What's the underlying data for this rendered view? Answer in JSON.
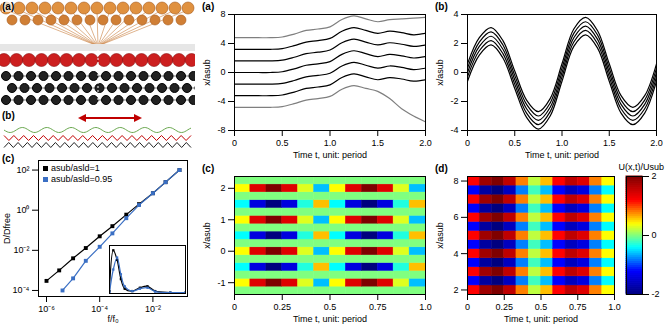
{
  "diagrams": [
    {
      "label": "(a)"
    },
    {
      "label": "(b)"
    }
  ],
  "chart_data": [
    {
      "type": "line",
      "title": "(c)",
      "log": true,
      "marker": "square",
      "legend": "top-left",
      "x_label": "f/f₀",
      "y_label": "D/Dfree",
      "xlim": [
        5e-07,
        0.2
      ],
      "ylim": [
        5e-05,
        300
      ],
      "xticks": [
        {
          "value": 1e-06,
          "label": "10⁻⁶"
        },
        {
          "value": 0.0001,
          "label": "10⁻⁴"
        },
        {
          "value": 0.01,
          "label": "10⁻²"
        }
      ],
      "yticks": [
        {
          "value": 0.0001,
          "label": "10⁻⁴"
        },
        {
          "value": 0.01,
          "label": "10⁻²"
        },
        {
          "value": 1,
          "label": "10⁰"
        },
        {
          "value": 100,
          "label": "10²"
        }
      ],
      "series": [
        {
          "name": "asub/asld=1",
          "color": "#000000",
          "x": [
            1e-06,
            3e-06,
            1e-05,
            3e-05,
            0.0001,
            0.0003,
            0.001,
            0.003,
            0.01,
            0.03,
            0.1
          ],
          "values": [
            0.0003,
            0.001,
            0.004,
            0.013,
            0.05,
            0.16,
            0.6,
            2,
            7,
            25,
            100
          ]
        },
        {
          "name": "asub/asld=0.95",
          "color": "#3a6fc4",
          "x": [
            4e-06,
            1e-05,
            3e-05,
            0.0001,
            0.0003,
            0.001,
            0.003,
            0.01,
            0.03,
            0.1
          ],
          "values": [
            0.0001,
            0.0004,
            0.003,
            0.015,
            0.07,
            0.4,
            1.8,
            7,
            25,
            100
          ]
        }
      ]
    },
    {
      "type": "line",
      "marker": "square",
      "tick_labels": false,
      "xlim": [
        0,
        1
      ],
      "ylim": [
        0,
        1
      ],
      "xticks": [],
      "yticks": [],
      "x": [
        0,
        0.05,
        0.1,
        0.15,
        0.2,
        0.3,
        0.4,
        0.5,
        0.6,
        0.8,
        1.0
      ],
      "series": [
        {
          "color": "#000000",
          "values": [
            0.05,
            0.9,
            0.7,
            0.3,
            0.1,
            0.05,
            0.12,
            0.15,
            0.05,
            0.02,
            0.02
          ]
        },
        {
          "color": "#3a6fc4",
          "values": [
            0.02,
            0.5,
            0.75,
            0.4,
            0.15,
            0.05,
            0.1,
            0.12,
            0.04,
            0.02,
            0.02
          ]
        }
      ]
    },
    {
      "type": "line",
      "title": "(a)",
      "x_label": "Time t, unit: period",
      "y_label": "x/asub",
      "xlim": [
        0,
        2
      ],
      "ylim": [
        -8,
        8
      ],
      "xticks": [
        0,
        0.5,
        {
          "value": 1,
          "label": "1.0"
        },
        1.5,
        {
          "value": 2,
          "label": "2.0"
        }
      ],
      "yticks": [
        -8,
        -4,
        0,
        4,
        8
      ],
      "x": [
        0,
        0.125,
        0.25,
        0.375,
        0.5,
        0.625,
        0.75,
        0.875,
        1,
        1.125,
        1.25,
        1.375,
        1.5,
        1.625,
        1.75,
        1.875,
        2
      ],
      "series": [
        {
          "color": "#7f7f7f",
          "values": [
            -4.8,
            -4.8,
            -4.8,
            -4.8,
            -4.7,
            -4.3,
            -3.8,
            -3.6,
            -3.3,
            -2.3,
            -1.8,
            -2.2,
            -2.6,
            -3.6,
            -5.0,
            -6.0,
            -6.8
          ]
        },
        {
          "color": "#000000",
          "values": [
            -3.2,
            -3.2,
            -3.2,
            -3.2,
            -3.1,
            -2.7,
            -2.2,
            -2.0,
            -1.7,
            -0.7,
            -0.2,
            -0.6,
            -1.0,
            -0.7,
            -0.9,
            -1.2,
            -1.0
          ]
        },
        {
          "color": "#000000",
          "values": [
            -1.6,
            -1.6,
            -1.6,
            -1.6,
            -1.5,
            -1.1,
            -0.6,
            -0.4,
            -0.1,
            0.9,
            1.4,
            1.0,
            0.6,
            0.9,
            0.7,
            0.4,
            0.6
          ]
        },
        {
          "color": "#000000",
          "values": [
            0,
            0,
            0,
            0,
            0.1,
            0.5,
            1.0,
            1.2,
            1.5,
            2.5,
            3.0,
            2.6,
            2.2,
            2.5,
            2.3,
            2.0,
            2.2
          ]
        },
        {
          "color": "#000000",
          "values": [
            1.6,
            1.6,
            1.6,
            1.6,
            1.7,
            2.1,
            2.6,
            2.8,
            3.1,
            4.1,
            4.6,
            4.2,
            3.8,
            4.1,
            3.9,
            3.6,
            3.8
          ]
        },
        {
          "color": "#000000",
          "values": [
            3.2,
            3.2,
            3.2,
            3.2,
            3.3,
            3.7,
            4.2,
            4.4,
            4.7,
            5.7,
            6.2,
            5.8,
            5.4,
            5.7,
            5.5,
            5.2,
            5.4
          ]
        },
        {
          "color": "#7f7f7f",
          "values": [
            4.8,
            4.8,
            4.8,
            4.8,
            4.9,
            5.3,
            5.8,
            6.0,
            6.3,
            7.3,
            7.8,
            7.4,
            7.0,
            7.3,
            7.4,
            7.5,
            7.6
          ]
        }
      ]
    },
    {
      "type": "line",
      "title": "(b)",
      "x_label": "Time t, unit: period",
      "y_label": "x/asub",
      "xlim": [
        0,
        2
      ],
      "ylim": [
        -4,
        4
      ],
      "xticks": [
        0,
        0.5,
        {
          "value": 1,
          "label": "1.0"
        },
        1.5,
        {
          "value": 2,
          "label": "2.0"
        }
      ],
      "yticks": [
        -4,
        -2,
        0,
        2,
        4
      ],
      "x": [
        0,
        0.125,
        0.25,
        0.375,
        0.5,
        0.625,
        0.75,
        0.875,
        1,
        1.125,
        1.25,
        1.375,
        1.5,
        1.625,
        1.75,
        1.875,
        2
      ],
      "series": [
        {
          "color": "#000000",
          "values": [
            -0.6,
            1.2,
            1.9,
            1.0,
            -1.1,
            -3.1,
            -3.9,
            -3.0,
            -0.6,
            1.8,
            2.6,
            1.7,
            -0.6,
            -2.8,
            -3.6,
            -2.8,
            -0.6
          ]
        },
        {
          "color": "#000000",
          "values": [
            -0.3,
            1.5,
            2.2,
            1.3,
            -0.8,
            -2.8,
            -3.6,
            -2.7,
            -0.3,
            2.1,
            2.9,
            2.0,
            -0.3,
            -2.5,
            -3.3,
            -2.5,
            -0.3
          ]
        },
        {
          "color": "#000000",
          "values": [
            0,
            1.8,
            2.5,
            1.6,
            -0.5,
            -2.5,
            -3.3,
            -2.4,
            0,
            2.4,
            3.2,
            2.3,
            0,
            -2.2,
            -3.0,
            -2.2,
            0
          ]
        },
        {
          "color": "#000000",
          "values": [
            0.3,
            2.1,
            2.8,
            1.9,
            -0.2,
            -2.2,
            -3.0,
            -2.1,
            0.3,
            2.7,
            3.5,
            2.6,
            0.3,
            -1.9,
            -2.7,
            -1.9,
            0.3
          ]
        },
        {
          "color": "#000000",
          "values": [
            0.6,
            2.4,
            3.1,
            2.2,
            0.1,
            -1.9,
            -2.7,
            -1.8,
            0.6,
            3.0,
            3.8,
            2.9,
            0.6,
            -1.6,
            -2.4,
            -1.6,
            0.6
          ]
        }
      ]
    },
    {
      "type": "heatmap",
      "title": "(c)",
      "x_label": "Time t, unit: period",
      "y_label": "x/asub",
      "xlim": [
        0,
        1
      ],
      "ylim": [
        -1.375,
        2.375
      ],
      "xticks": [
        0,
        0.25,
        0.5,
        0.75,
        {
          "value": 1,
          "label": "1.0"
        }
      ],
      "yticks": [
        -1,
        0,
        1,
        2
      ],
      "color_range": [
        -2,
        2
      ],
      "x_bins": [
        0,
        0.083,
        0.167,
        0.25,
        0.333,
        0.417,
        0.5,
        0.583,
        0.667,
        0.75,
        0.833,
        0.917,
        1
      ],
      "y_bins": [
        -1.375,
        -1.125,
        -0.875,
        -0.625,
        -0.375,
        -0.125,
        0.125,
        0.375,
        0.625,
        0.875,
        1.125,
        1.375,
        1.625,
        1.875,
        2.125,
        2.375
      ],
      "cells": [
        [
          0,
          0,
          0,
          0,
          0,
          0,
          0,
          0,
          0,
          0,
          0,
          0
        ],
        [
          0.4,
          1.4,
          2.0,
          1.4,
          0.3,
          -0.6,
          0.4,
          1.4,
          2.0,
          1.4,
          0.3,
          -0.6
        ],
        [
          0,
          0,
          0,
          0,
          0,
          0,
          0,
          0,
          0,
          0,
          0,
          0
        ],
        [
          -0.4,
          -1.4,
          -2.0,
          -1.4,
          -0.3,
          0.6,
          -0.4,
          -1.4,
          -2.0,
          -1.4,
          -0.3,
          0.6
        ],
        [
          0,
          0,
          0,
          0,
          0,
          0,
          0,
          0,
          0,
          0,
          0,
          0
        ],
        [
          0.4,
          1.4,
          2.0,
          1.4,
          0.3,
          -0.6,
          0.4,
          1.4,
          2.0,
          1.4,
          0.3,
          -0.6
        ],
        [
          0,
          0,
          0,
          0,
          0,
          0,
          0,
          0,
          0,
          0,
          0,
          0
        ],
        [
          -0.4,
          -1.4,
          -2.0,
          -1.4,
          -0.3,
          0.6,
          -0.4,
          -1.4,
          -2.0,
          -1.4,
          -0.3,
          0.6
        ],
        [
          0,
          0,
          0,
          0,
          0,
          0,
          0,
          0,
          0,
          0,
          0,
          0
        ],
        [
          0.4,
          1.4,
          2.0,
          1.4,
          0.3,
          -0.6,
          0.4,
          1.4,
          2.0,
          1.4,
          0.3,
          -0.6
        ],
        [
          0,
          0,
          0,
          0,
          0,
          0,
          0,
          0,
          0,
          0,
          0,
          0
        ],
        [
          -0.4,
          -1.4,
          -2.0,
          -1.4,
          -0.3,
          0.6,
          -0.4,
          -1.4,
          -2.0,
          -1.4,
          -0.3,
          0.6
        ],
        [
          0,
          0,
          0,
          0,
          0,
          0,
          0,
          0,
          0,
          0,
          0,
          0
        ],
        [
          0.4,
          1.4,
          2.0,
          1.4,
          0.3,
          -0.6,
          0.4,
          1.4,
          2.0,
          1.4,
          0.3,
          -0.6
        ],
        [
          0,
          0,
          0,
          0,
          0,
          0,
          0,
          0,
          0,
          0,
          0,
          0
        ]
      ]
    },
    {
      "type": "heatmap",
      "title": "(d)",
      "x_label": "Time t, unit: period",
      "y_label": "x/asub",
      "xlim": [
        0,
        1
      ],
      "ylim": [
        1.75,
        8.25
      ],
      "xticks": [
        0,
        0.25,
        0.5,
        0.75,
        {
          "value": 1,
          "label": "1.0"
        }
      ],
      "yticks": [
        2,
        4,
        6,
        8
      ],
      "colorbar": {
        "label": "U(x,t)/Usub",
        "range": [
          -2,
          2
        ],
        "ticks": [
          -2,
          0,
          2
        ]
      },
      "x_bins": [
        0,
        0.083,
        0.167,
        0.25,
        0.333,
        0.417,
        0.5,
        0.583,
        0.667,
        0.75,
        0.833,
        0.917,
        1
      ],
      "y_bins": [
        1.75,
        2.25,
        2.75,
        3.25,
        3.75,
        4.25,
        4.75,
        5.25,
        5.75,
        6.25,
        6.75,
        7.25,
        7.75,
        8.25
      ],
      "cells": [
        [
          1.2,
          1.8,
          2.0,
          1.6,
          0.8,
          0.2,
          0.6,
          1.2,
          1.6,
          1.4,
          0.8,
          0.4
        ],
        [
          -1.2,
          -1.8,
          -2.0,
          -1.6,
          -0.8,
          -0.2,
          -0.6,
          -1.2,
          -1.6,
          -1.4,
          -0.8,
          -0.4
        ],
        [
          1.2,
          1.8,
          2.0,
          1.6,
          0.8,
          0.2,
          0.6,
          1.2,
          1.6,
          1.4,
          0.8,
          0.4
        ],
        [
          -1.2,
          -1.8,
          -2.0,
          -1.6,
          -0.8,
          -0.2,
          -0.6,
          -1.2,
          -1.6,
          -1.4,
          -0.8,
          -0.4
        ],
        [
          1.2,
          1.8,
          2.0,
          1.6,
          0.8,
          0.2,
          0.6,
          1.2,
          1.6,
          1.4,
          0.8,
          0.4
        ],
        [
          -1.2,
          -1.8,
          -2.0,
          -1.6,
          -0.8,
          -0.2,
          -0.6,
          -1.2,
          -1.6,
          -1.4,
          -0.8,
          -0.4
        ],
        [
          1.2,
          1.8,
          2.0,
          1.6,
          0.8,
          0.2,
          0.6,
          1.2,
          1.6,
          1.4,
          0.8,
          0.4
        ],
        [
          -1.2,
          -1.8,
          -2.0,
          -1.6,
          -0.8,
          -0.2,
          -0.6,
          -1.2,
          -1.6,
          -1.4,
          -0.8,
          -0.4
        ],
        [
          1.2,
          1.8,
          2.0,
          1.6,
          0.8,
          0.2,
          0.6,
          1.2,
          1.6,
          1.4,
          0.8,
          0.4
        ],
        [
          -1.2,
          -1.8,
          -2.0,
          -1.6,
          -0.8,
          -0.2,
          -0.6,
          -1.2,
          -1.6,
          -1.4,
          -0.8,
          -0.4
        ],
        [
          1.2,
          1.8,
          2.0,
          1.6,
          0.8,
          0.2,
          0.6,
          1.2,
          1.6,
          1.4,
          0.8,
          0.4
        ],
        [
          -1.2,
          -1.8,
          -2.0,
          -1.6,
          -0.8,
          -0.2,
          -0.6,
          -1.2,
          -1.6,
          -1.4,
          -0.8,
          -0.4
        ],
        [
          1.2,
          1.8,
          2.0,
          1.6,
          0.8,
          0.2,
          0.6,
          1.2,
          1.6,
          1.4,
          0.8,
          0.4
        ]
      ]
    }
  ]
}
